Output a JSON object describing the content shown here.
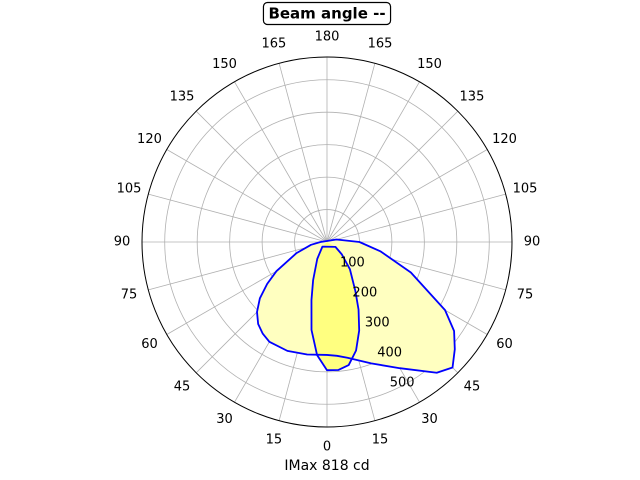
{
  "chart_data": {
    "type": "polar",
    "title": "Beam angle --",
    "xlabel": "IMax 818 cd",
    "rlim": [
      0,
      570
    ],
    "rticks": [
      100,
      200,
      300,
      400,
      500
    ],
    "thetaticks": [
      {
        "value": -165,
        "label": "165"
      },
      {
        "value": -150,
        "label": "150"
      },
      {
        "value": -135,
        "label": "135"
      },
      {
        "value": -120,
        "label": "120"
      },
      {
        "value": -105,
        "label": "105"
      },
      {
        "value": -90,
        "label": "90"
      },
      {
        "value": -75,
        "label": "75"
      },
      {
        "value": -60,
        "label": "60"
      },
      {
        "value": -45,
        "label": "45"
      },
      {
        "value": -30,
        "label": "30"
      },
      {
        "value": -15,
        "label": "15"
      },
      0,
      15,
      30,
      45,
      60,
      75,
      90,
      105,
      120,
      135,
      150,
      165,
      180
    ],
    "grid": true,
    "series": [
      {
        "color": "#0000ff",
        "fill": "#ffffc0",
        "theta": [
          -90,
          -80,
          -70,
          -60,
          -55,
          -50,
          -45,
          -40,
          -35,
          -30,
          -20,
          -10,
          0,
          5,
          10,
          20,
          30,
          40,
          45,
          50,
          55,
          60,
          70,
          80,
          90,
          105
        ],
        "values": [
          20,
          50,
          100,
          180,
          225,
          270,
          305,
          330,
          345,
          355,
          357,
          352,
          348,
          352,
          362,
          398,
          449,
          526,
          547,
          514,
          478,
          420,
          275,
          168,
          100,
          30
        ]
      },
      {
        "color": "#0000ff",
        "fill": "#ffff80",
        "theta": [
          -45,
          -30,
          -20,
          -15,
          -10,
          -5,
          0,
          5,
          10,
          15,
          20,
          25,
          30,
          40,
          50,
          60
        ],
        "values": [
          20,
          60,
          125,
          185,
          275,
          350,
          395,
          396,
          385,
          346,
          290,
          230,
          175,
          110,
          60,
          30
        ]
      }
    ]
  }
}
